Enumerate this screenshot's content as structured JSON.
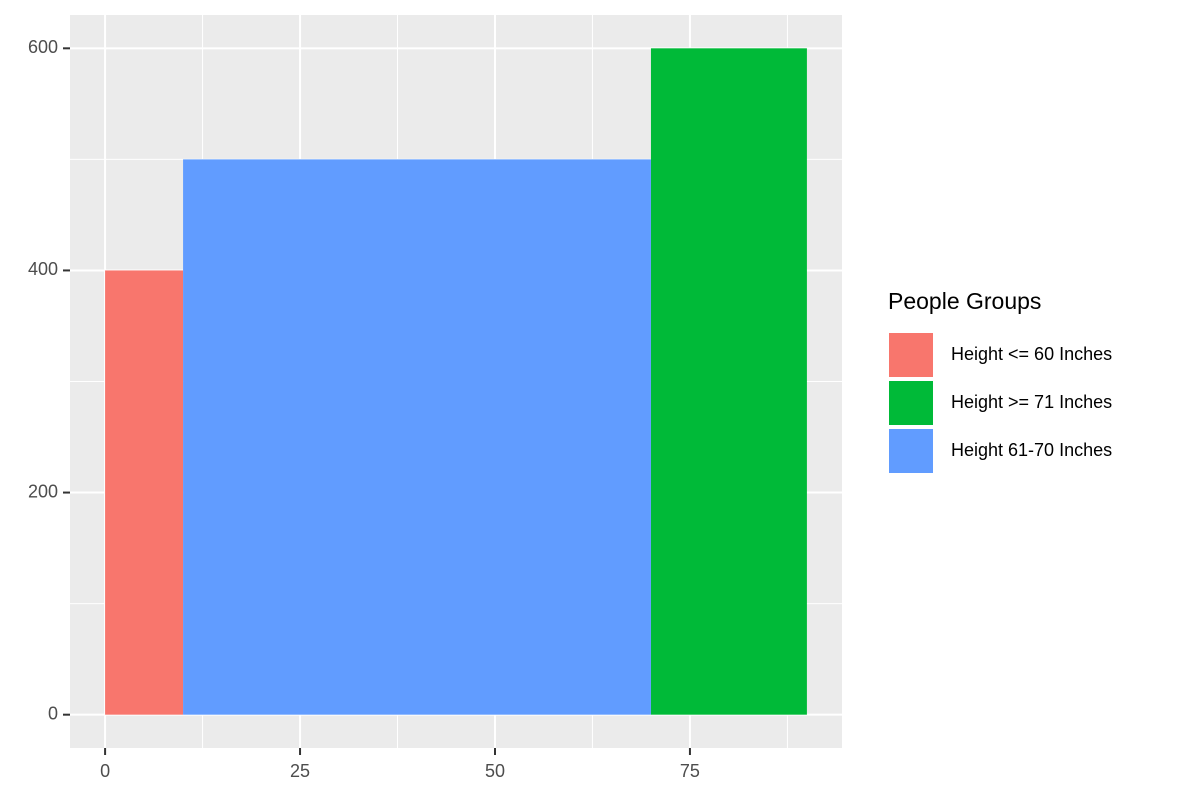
{
  "chart_data": {
    "type": "rect",
    "legend_title": "People Groups",
    "legend_position": "right",
    "series": [
      {
        "name": "Height <= 60 Inches",
        "color": "#f8766d",
        "bins": [
          0,
          10
        ],
        "values": [
          400
        ]
      },
      {
        "name": "Height >= 71 Inches",
        "color": "#00ba38",
        "bins": [
          70,
          90
        ],
        "values": [
          600
        ]
      },
      {
        "name": "Height 61-70 Inches",
        "color": "#619cff",
        "bins": [
          10,
          70
        ],
        "values": [
          500
        ]
      }
    ],
    "xlim": [
      -4.5,
      94.5
    ],
    "xticks": [
      0,
      25,
      50,
      75
    ],
    "xminorticks": [
      12.5,
      37.5,
      62.5,
      87.5
    ],
    "ylim": [
      -30,
      630
    ],
    "yticks": [
      0,
      200,
      400,
      600
    ],
    "yminorticks": [
      100,
      300,
      500
    ],
    "grid": true
  }
}
